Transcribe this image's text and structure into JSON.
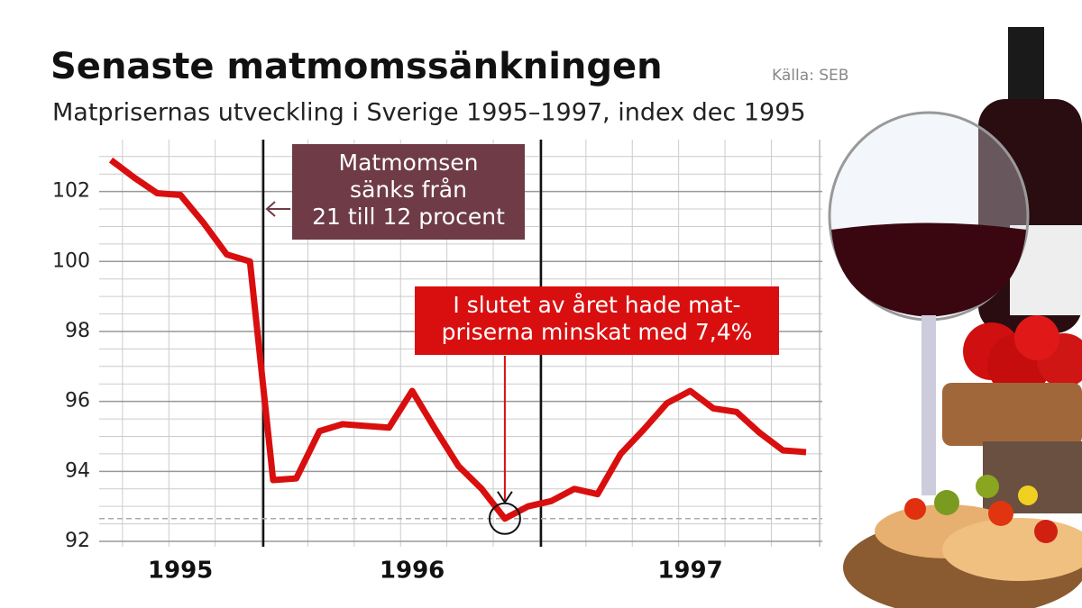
{
  "chart_data": {
    "type": "line",
    "title": "Senaste matmomssänkningen",
    "subtitle": "Matprisernas utveckling i Sverige 1995–1997, index dec 1995",
    "source": "Källa: SEB",
    "categories": [
      null,
      null,
      null,
      "1995",
      null,
      null,
      null,
      null,
      null,
      null,
      null,
      null,
      null,
      "1996",
      null,
      null,
      null,
      null,
      null,
      null,
      null,
      null,
      null,
      null,
      null,
      "1997",
      null,
      null,
      null,
      null,
      null
    ],
    "series": [
      {
        "color": "#d90f0f",
        "values": [
          102.9,
          102.4,
          101.95,
          101.9,
          101.1,
          100.2,
          100.0,
          93.75,
          93.8,
          95.15,
          95.35,
          95.3,
          95.25,
          96.3,
          95.2,
          94.15,
          93.5,
          92.65,
          93.0,
          93.15,
          93.5,
          93.35,
          94.5,
          95.2,
          95.95,
          96.3,
          95.8,
          95.7,
          95.1,
          94.6,
          94.55
        ]
      }
    ],
    "ylim": [
      92,
      103.2
    ],
    "yticks": [
      92,
      94,
      96,
      98,
      100,
      102
    ],
    "grid": true,
    "annotations": [
      {
        "lines": [
          "Matmomsen",
          "sänks från",
          "21 till 12 procent"
        ],
        "color": "#6e3b47"
      },
      {
        "lines": [
          "I slutet av året hade mat-",
          "priserna minskat med 7,4%"
        ],
        "color": "#d90f0f"
      }
    ]
  }
}
